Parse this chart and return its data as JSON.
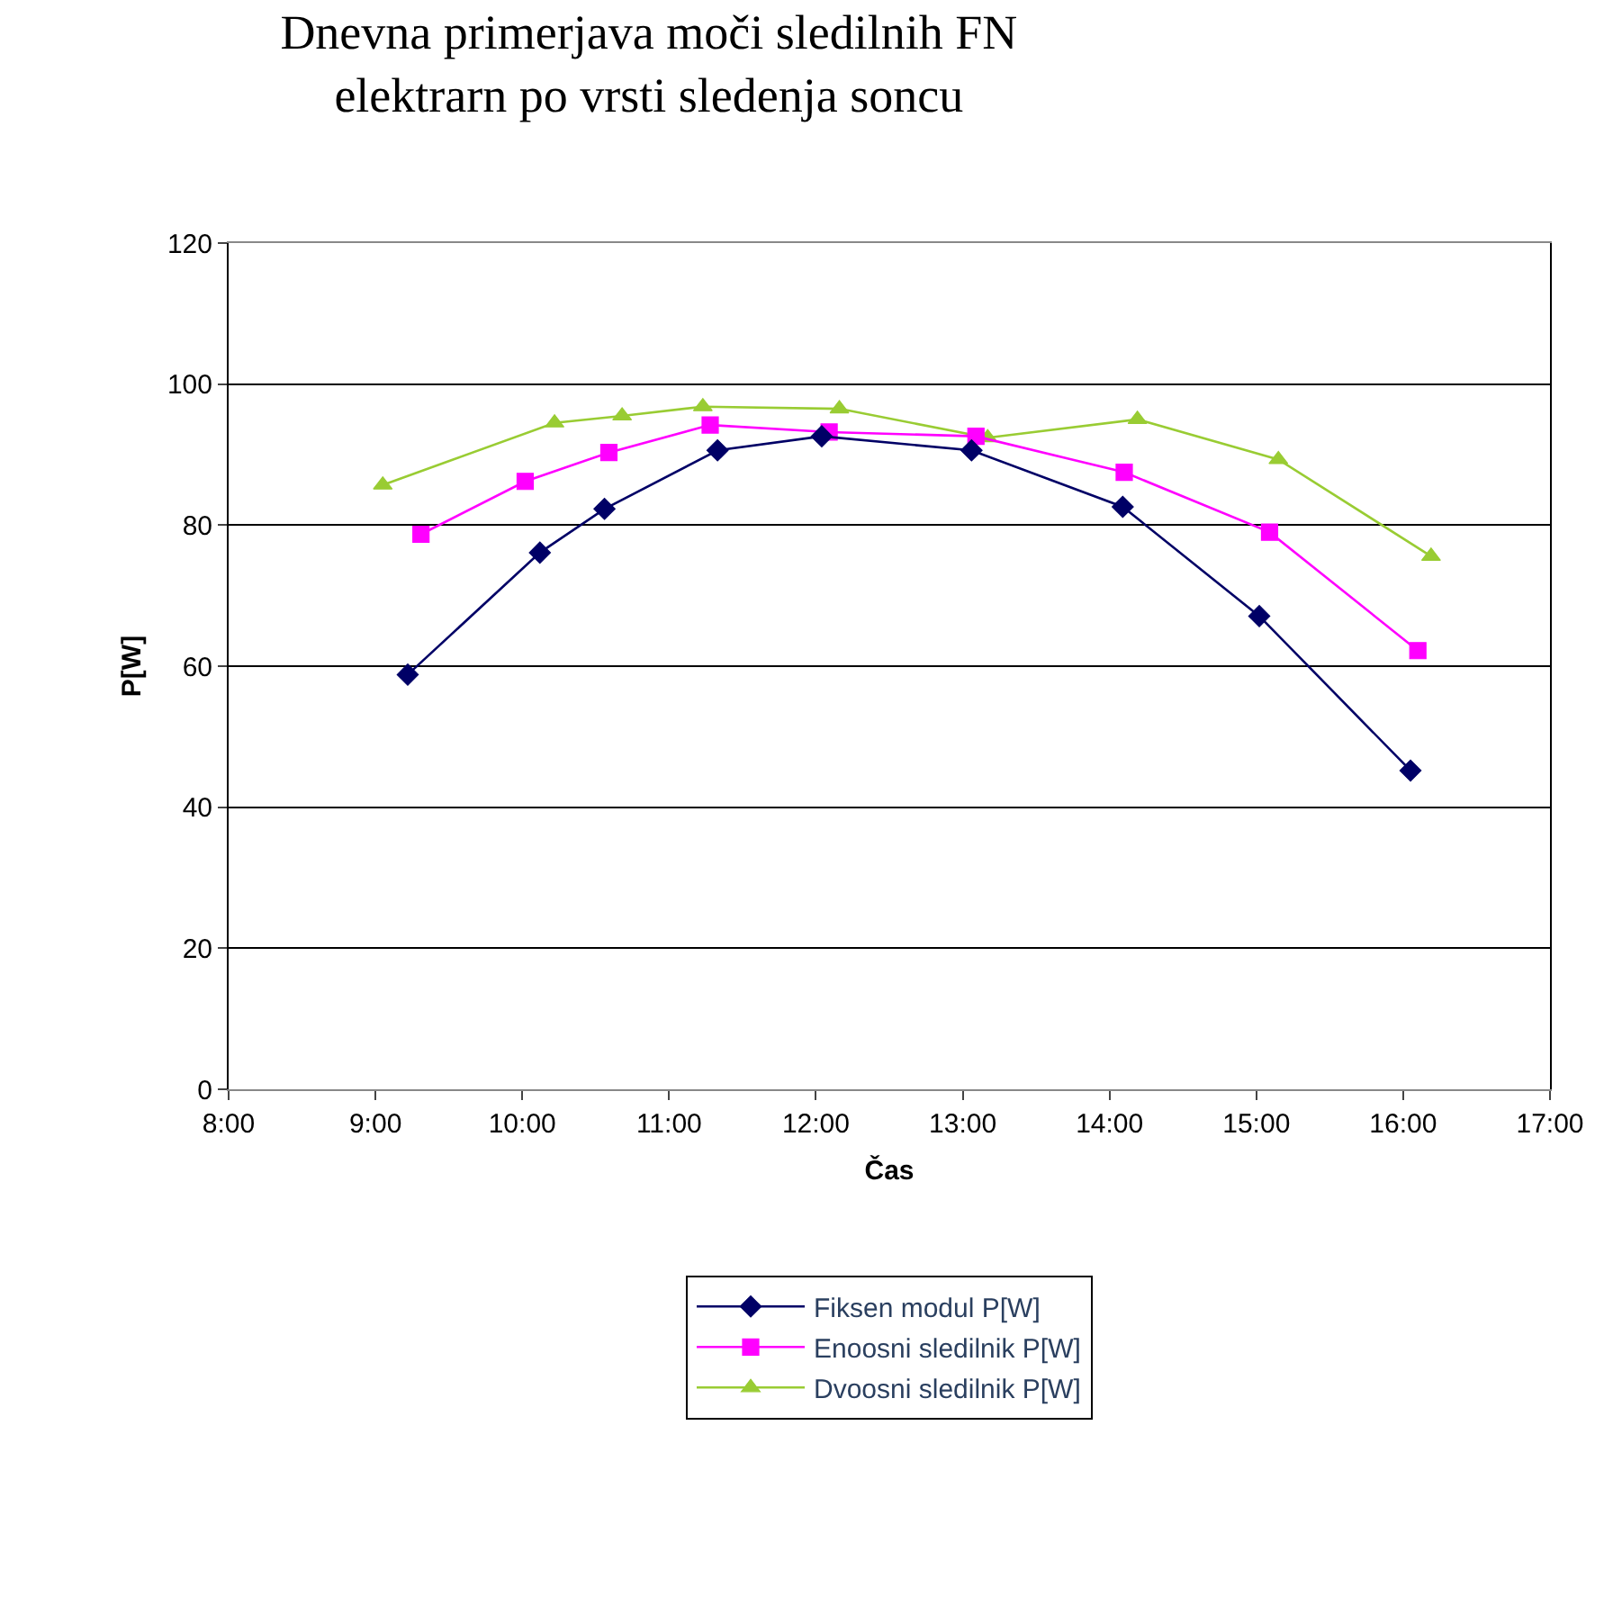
{
  "chart_data": {
    "type": "line",
    "title": "Dnevna primerjava moči sledilnih FN\nelektrarn po vrsti sledenja soncu",
    "xlabel": "Čas",
    "ylabel": "P[W]",
    "xlim": [
      8,
      17
    ],
    "xticks": [
      {
        "value": 8,
        "label": "8:00"
      },
      {
        "value": 9,
        "label": "9:00"
      },
      {
        "value": 10,
        "label": "10:00"
      },
      {
        "value": 11,
        "label": "11:00"
      },
      {
        "value": 12,
        "label": "12:00"
      },
      {
        "value": 13,
        "label": "13:00"
      },
      {
        "value": 14,
        "label": "14:00"
      },
      {
        "value": 15,
        "label": "15:00"
      },
      {
        "value": 16,
        "label": "16:00"
      },
      {
        "value": 17,
        "label": "17:00"
      }
    ],
    "ylim": [
      0,
      120
    ],
    "yticks": [
      0,
      20,
      40,
      60,
      80,
      100,
      120
    ],
    "grid": "y",
    "legend": "bottom",
    "series": [
      {
        "name": "Fiksen modul P[W]",
        "color": "#000066",
        "marker": "diamond",
        "x": [
          9.22,
          10.12,
          10.56,
          11.33,
          12.04,
          13.06,
          14.09,
          15.02,
          16.05
        ],
        "values": [
          58.8,
          76.1,
          82.3,
          90.6,
          92.6,
          90.6,
          82.6,
          67.1,
          45.2
        ]
      },
      {
        "name": "Enoosni sledilnik P[W]",
        "color": "#ff00ff",
        "marker": "square",
        "x": [
          9.31,
          10.02,
          10.59,
          11.28,
          12.09,
          13.09,
          14.1,
          15.09,
          16.1
        ],
        "values": [
          78.7,
          86.2,
          90.3,
          94.2,
          93.2,
          92.6,
          87.5,
          79.0,
          62.2
        ]
      },
      {
        "name": "Dvoosni sledilnik P[W]",
        "color": "#99cc33",
        "marker": "triangle",
        "x": [
          9.05,
          10.22,
          10.68,
          11.23,
          12.16,
          13.17,
          14.19,
          15.15,
          16.19
        ],
        "values": [
          85.7,
          94.5,
          95.5,
          96.8,
          96.5,
          92.4,
          95.0,
          89.3,
          75.6
        ]
      }
    ]
  }
}
